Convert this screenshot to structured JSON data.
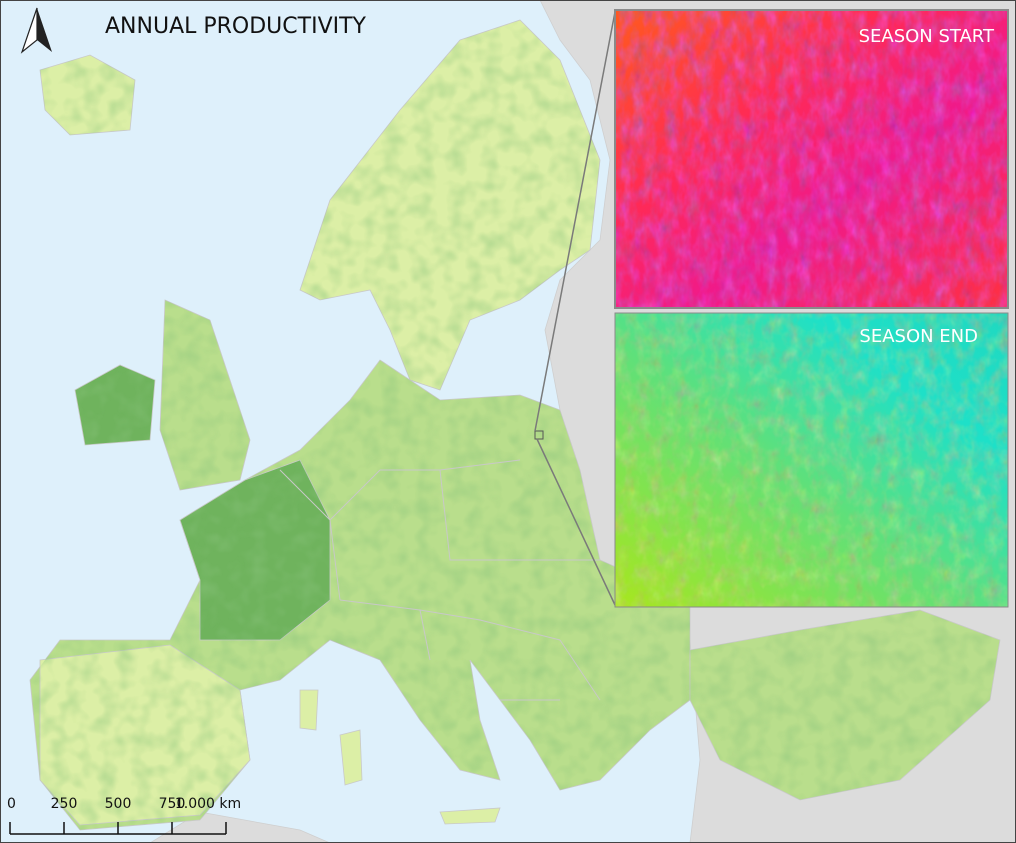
{
  "map": {
    "title": "ANNUAL PRODUCTIVITY",
    "insets": [
      {
        "label": "SEASON START"
      },
      {
        "label": "SEASON END"
      }
    ],
    "scale_bar": {
      "labels": [
        "0",
        "250",
        "500",
        "750",
        "1.000 km"
      ]
    }
  }
}
